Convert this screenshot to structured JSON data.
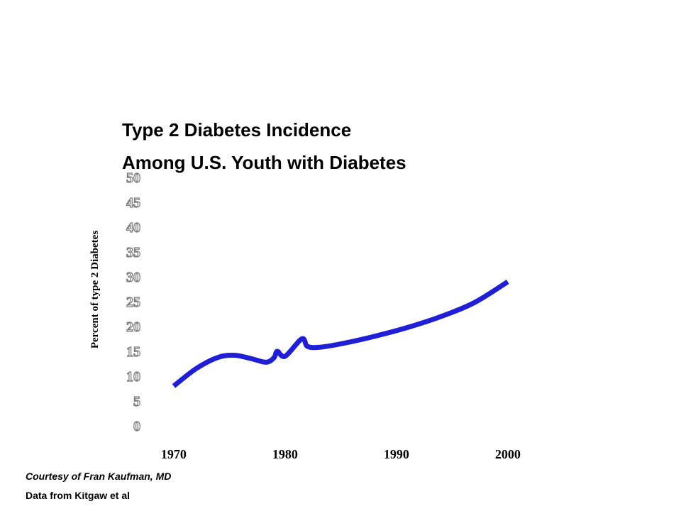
{
  "title_lines": [
    "Type 2 Diabetes  Incidence",
    "Among U.S. Youth with Diabetes"
  ],
  "credits": [
    "Courtesy of Fran Kaufman, MD",
    "Data from Kitgaw et al"
  ],
  "colors": {
    "line": "#1f1fd6",
    "text": "#000000",
    "tick_outline": "#7a7a7a"
  },
  "chart_data": {
    "type": "line",
    "ylabel": "Percent  of type 2 Diabetes",
    "xlabel": "",
    "ylim": [
      0,
      50
    ],
    "xlim": [
      1966.5,
      2006
    ],
    "yticks": [
      "0",
      "5",
      "10",
      "15",
      "20",
      "25",
      "30",
      "35",
      "40",
      "45",
      "50"
    ],
    "xticks": [
      "1970",
      "1980",
      "1990",
      "2000"
    ],
    "grid": false,
    "series": [
      {
        "x": [
          1970,
          1972,
          1974,
          1975.5,
          1977,
          1978.3,
          1979,
          1979.3,
          1980,
          1981.5,
          1982,
          1983,
          1985,
          1988,
          1991,
          1994,
          1997,
          2000
        ],
        "y": [
          8,
          11.5,
          13.8,
          14.2,
          13.5,
          12.8,
          13.7,
          15,
          14,
          17.5,
          16,
          15.8,
          16.5,
          18,
          19.8,
          22,
          24.8,
          29
        ]
      }
    ]
  }
}
